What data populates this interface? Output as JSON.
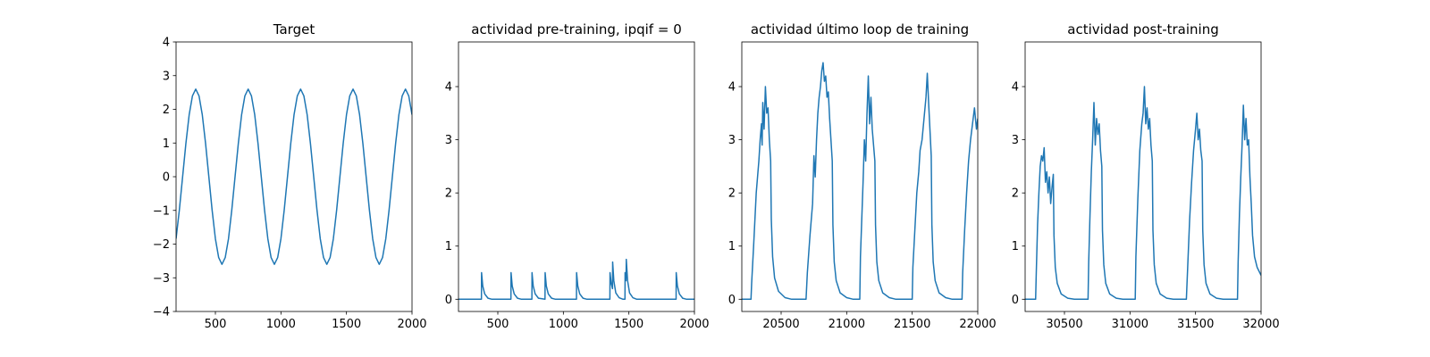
{
  "chart_data": [
    {
      "type": "line",
      "title": "Target",
      "color": "#1f77b4",
      "x": [
        200,
        225,
        250,
        275,
        300,
        325,
        350,
        375,
        400,
        425,
        450,
        475,
        500,
        525,
        550,
        575,
        600,
        625,
        650,
        675,
        700,
        725,
        750,
        775,
        800,
        825,
        850,
        875,
        900,
        925,
        950,
        975,
        1000,
        1025,
        1050,
        1075,
        1100,
        1125,
        1150,
        1175,
        1200,
        1225,
        1250,
        1275,
        1300,
        1325,
        1350,
        1375,
        1400,
        1425,
        1450,
        1475,
        1500,
        1525,
        1550,
        1575,
        1600,
        1625,
        1650,
        1675,
        1700,
        1725,
        1750,
        1775,
        1800,
        1825,
        1850,
        1875,
        1900,
        1925,
        1950,
        1975,
        2000
      ],
      "values": [
        -1.84,
        -0.99,
        0,
        0.99,
        1.84,
        2.4,
        2.6,
        2.4,
        1.84,
        0.99,
        0,
        -0.99,
        -1.84,
        -2.4,
        -2.6,
        -2.4,
        -1.84,
        -0.99,
        0,
        0.99,
        1.84,
        2.4,
        2.6,
        2.4,
        1.84,
        0.99,
        0,
        -0.99,
        -1.84,
        -2.4,
        -2.6,
        -2.4,
        -1.84,
        -0.99,
        0,
        0.99,
        1.84,
        2.4,
        2.6,
        2.4,
        1.84,
        0.99,
        0,
        -0.99,
        -1.84,
        -2.4,
        -2.6,
        -2.4,
        -1.84,
        -0.99,
        0,
        0.99,
        1.84,
        2.4,
        2.6,
        2.4,
        1.84,
        0.99,
        0,
        -0.99,
        -1.84,
        -2.4,
        -2.6,
        -2.4,
        -1.84,
        -0.99,
        0,
        0.99,
        1.84,
        2.4,
        2.6,
        2.4,
        1.84
      ],
      "xlim": [
        200,
        2000
      ],
      "ylim": [
        -4,
        4
      ],
      "xticks": [
        500,
        1000,
        1500,
        2000
      ],
      "yticks": [
        {
          "value": -4,
          "label": "−4"
        },
        {
          "value": -3,
          "label": "−3"
        },
        {
          "value": -2,
          "label": "−2"
        },
        {
          "value": -1,
          "label": "−1"
        },
        0,
        1,
        2,
        3,
        4
      ]
    },
    {
      "type": "line",
      "title": "actividad pre-training, ipqif = 0",
      "color": "#1f77b4",
      "x": [
        200,
        375,
        376,
        385,
        400,
        425,
        455,
        600,
        601,
        610,
        625,
        650,
        680,
        760,
        761,
        770,
        785,
        810,
        860,
        861,
        870,
        885,
        910,
        940,
        1100,
        1101,
        1110,
        1125,
        1150,
        1180,
        1355,
        1356,
        1365,
        1375,
        1376,
        1385,
        1400,
        1425,
        1455,
        1470,
        1471,
        1478,
        1480,
        1490,
        1505,
        1530,
        1560,
        1860,
        1861,
        1870,
        1885,
        1910,
        1940,
        2000
      ],
      "values": [
        0,
        0,
        0.5,
        0.25,
        0.1,
        0.02,
        0,
        0,
        0.5,
        0.25,
        0.1,
        0.02,
        0,
        0,
        0.5,
        0.25,
        0.1,
        0.02,
        0,
        0.5,
        0.25,
        0.1,
        0.02,
        0,
        0,
        0.5,
        0.25,
        0.1,
        0.02,
        0,
        0,
        0.5,
        0.3,
        0.2,
        0.7,
        0.35,
        0.12,
        0.03,
        0,
        0,
        0.5,
        0.35,
        0.75,
        0.35,
        0.12,
        0.03,
        0,
        0,
        0.5,
        0.25,
        0.1,
        0.02,
        0,
        0
      ],
      "xlim": [
        200,
        2000
      ],
      "ylim": [
        -0.23,
        4.84
      ],
      "xticks": [
        500,
        1000,
        1500,
        2000
      ],
      "yticks": [
        0,
        1,
        2,
        3,
        4
      ]
    },
    {
      "type": "line",
      "title": "actividad último loop de training",
      "color": "#1f77b4",
      "x": [
        20200,
        20270,
        20275,
        20290,
        20300,
        20310,
        20320,
        20330,
        20340,
        20350,
        20355,
        20360,
        20370,
        20380,
        20390,
        20400,
        20410,
        20420,
        20425,
        20435,
        20450,
        20480,
        20530,
        20580,
        20690,
        20700,
        20720,
        20740,
        20750,
        20760,
        20770,
        20780,
        20790,
        20800,
        20810,
        20820,
        20830,
        20840,
        20850,
        20860,
        20870,
        20880,
        20890,
        20895,
        20905,
        20920,
        20950,
        21000,
        21050,
        21100,
        21105,
        21115,
        21125,
        21135,
        21145,
        21155,
        21165,
        21175,
        21185,
        21195,
        21205,
        21215,
        21220,
        21230,
        21245,
        21275,
        21325,
        21375,
        21500,
        21505,
        21520,
        21535,
        21550,
        21560,
        21575,
        21590,
        21605,
        21615,
        21625,
        21635,
        21645,
        21650,
        21660,
        21675,
        21705,
        21755,
        21805,
        21880,
        21885,
        21900,
        21915,
        21930,
        21945,
        21960,
        21975,
        21990,
        22000
      ],
      "values": [
        0,
        0,
        0.3,
        1.0,
        1.5,
        2.0,
        2.3,
        2.6,
        3.0,
        3.3,
        2.9,
        3.7,
        3.2,
        4.0,
        3.5,
        3.6,
        3.0,
        2.6,
        1.5,
        0.8,
        0.4,
        0.15,
        0.03,
        0,
        0,
        0.5,
        1.2,
        1.8,
        2.7,
        2.3,
        3.0,
        3.5,
        3.8,
        4.0,
        4.3,
        4.45,
        4.1,
        4.2,
        3.8,
        3.9,
        3.4,
        3.0,
        2.6,
        1.4,
        0.7,
        0.35,
        0.12,
        0.03,
        0,
        0,
        0.8,
        1.5,
        2.2,
        3.0,
        2.6,
        3.5,
        4.2,
        3.3,
        3.8,
        3.2,
        2.9,
        2.6,
        1.4,
        0.7,
        0.35,
        0.12,
        0.03,
        0,
        0,
        0.6,
        1.3,
        2.0,
        2.4,
        2.8,
        3.0,
        3.4,
        3.8,
        4.25,
        3.7,
        3.2,
        2.7,
        1.4,
        0.7,
        0.35,
        0.12,
        0.03,
        0,
        0,
        0.5,
        1.3,
        2.0,
        2.6,
        3.0,
        3.3,
        3.6,
        3.2,
        3.4
      ],
      "xlim": [
        20200,
        22000
      ],
      "ylim": [
        -0.23,
        4.84
      ],
      "xticks": [
        20500,
        21000,
        21500,
        22000
      ],
      "yticks": [
        0,
        1,
        2,
        3,
        4
      ]
    },
    {
      "type": "line",
      "title": "actividad post-training",
      "color": "#1f77b4",
      "x": [
        30200,
        30280,
        30285,
        30295,
        30305,
        30315,
        30325,
        30335,
        30345,
        30355,
        30365,
        30375,
        30385,
        30395,
        30405,
        30415,
        30420,
        30430,
        30445,
        30475,
        30525,
        30575,
        30680,
        30685,
        30695,
        30705,
        30715,
        30725,
        30735,
        30745,
        30755,
        30765,
        30775,
        30785,
        30790,
        30800,
        30815,
        30845,
        30895,
        30945,
        31040,
        31045,
        31060,
        31075,
        31090,
        31100,
        31110,
        31120,
        31130,
        31140,
        31150,
        31160,
        31170,
        31175,
        31185,
        31200,
        31230,
        31280,
        31330,
        31430,
        31440,
        31455,
        31470,
        31485,
        31500,
        31510,
        31520,
        31530,
        31540,
        31550,
        31555,
        31565,
        31580,
        31610,
        31660,
        31710,
        31820,
        31825,
        31835,
        31845,
        31855,
        31865,
        31875,
        31885,
        31895,
        31905,
        31915,
        31925,
        31935,
        31950,
        31970,
        32000
      ],
      "values": [
        0,
        0,
        0.5,
        1.4,
        2.0,
        2.5,
        2.7,
        2.6,
        2.85,
        2.2,
        2.4,
        2.0,
        2.3,
        1.8,
        2.1,
        2.35,
        1.2,
        0.6,
        0.3,
        0.1,
        0.02,
        0,
        0,
        0.7,
        1.6,
        2.4,
        3.0,
        3.7,
        2.9,
        3.4,
        3.1,
        3.3,
        2.8,
        2.5,
        1.3,
        0.65,
        0.3,
        0.1,
        0.02,
        0,
        0,
        0.8,
        1.9,
        2.8,
        3.3,
        3.5,
        4.0,
        3.3,
        3.6,
        3.2,
        3.4,
        2.9,
        2.6,
        1.3,
        0.65,
        0.3,
        0.1,
        0.02,
        0,
        0,
        0.6,
        1.5,
        2.2,
        2.8,
        3.2,
        3.5,
        3.0,
        3.2,
        2.8,
        2.6,
        1.3,
        0.65,
        0.3,
        0.1,
        0.02,
        0,
        0,
        0.7,
        1.6,
        2.3,
        2.9,
        3.65,
        3.0,
        3.4,
        2.9,
        3.0,
        2.3,
        1.8,
        1.2,
        0.8,
        0.6,
        0.45
      ],
      "xlim": [
        30200,
        32000
      ],
      "ylim": [
        -0.23,
        4.84
      ],
      "xticks": [
        30500,
        31000,
        31500,
        32000
      ],
      "yticks": [
        0,
        1,
        2,
        3,
        4
      ]
    }
  ]
}
